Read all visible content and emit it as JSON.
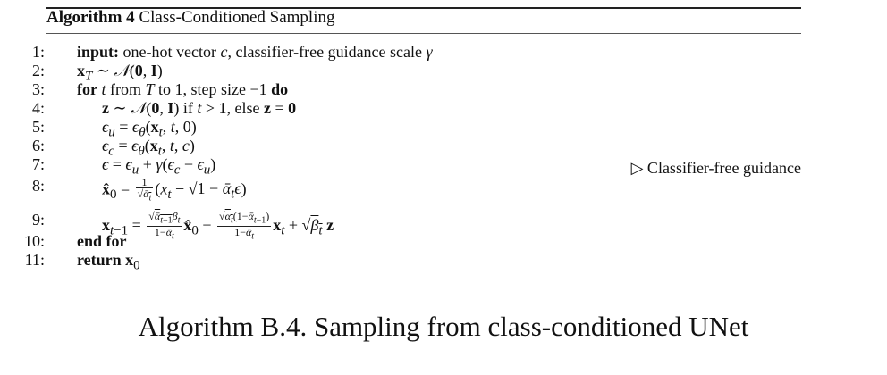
{
  "algorithm": {
    "header_label": "Algorithm 4",
    "header_title": "Class-Conditioned Sampling",
    "lines": [
      {
        "num": "1:",
        "kw": "input:",
        "text": "one-hot vector c, classifier-free guidance scale γ"
      },
      {
        "num": "2:",
        "text": "x_T ∼ 𝒩(0, I)"
      },
      {
        "num": "3:",
        "kw": "for",
        "text": "t from T to 1, step size −1",
        "kw_end": "do"
      },
      {
        "num": "4:",
        "text": "z ∼ 𝒩(0, I) if t > 1, else z = 0"
      },
      {
        "num": "5:",
        "text": "ε_u = ε_θ(x_t, t, 0)"
      },
      {
        "num": "6:",
        "text": "ε_c = ε_θ(x_t, t, c)"
      },
      {
        "num": "7:",
        "text": "ε = ε_u + γ(ε_c − ε_u)"
      },
      {
        "num": "8:",
        "text": "x̂_0 = 1/√ᾱ_t (x_t − √(1 − ᾱ_t) ε)"
      },
      {
        "num": "9:",
        "text": "x_{t−1} = (√ᾱ_{t−1} β_t)/(1 − ᾱ_t) x̂_0 + (√α_t (1 − ᾱ_{t−1}))/(1 − ᾱ_t) x_t + √β_t z"
      },
      {
        "num": "10:",
        "kw": "end for"
      },
      {
        "num": "11:",
        "kw": "return",
        "text": "x_0"
      }
    ],
    "comment": "▷ Classifier-free guidance"
  },
  "caption": "Algorithm B.4. Sampling from class-conditioned UNet"
}
